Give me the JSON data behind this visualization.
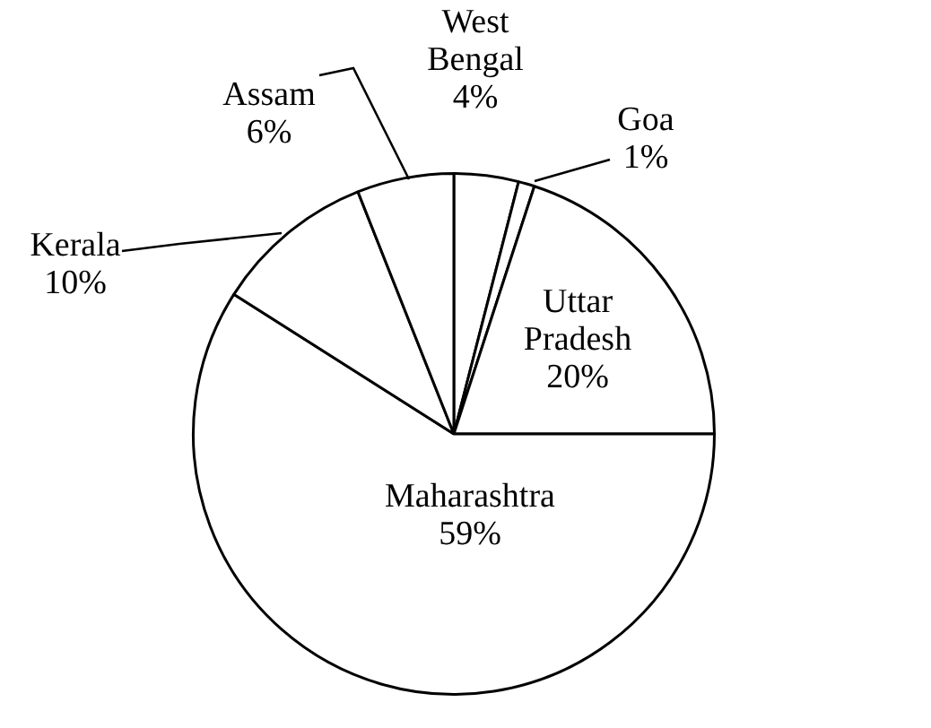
{
  "chart_data": {
    "type": "pie",
    "categories": [
      "West Bengal",
      "Goa",
      "Uttar Pradesh",
      "Maharashtra",
      "Kerala",
      "Assam"
    ],
    "values": [
      4,
      1,
      20,
      59,
      10,
      6
    ],
    "value_labels": [
      "4%",
      "1%",
      "20%",
      "59%",
      "10%",
      "6%"
    ],
    "colors": [
      "#ffffff",
      "#ffffff",
      "#ffffff",
      "#ffffff",
      "#ffffff",
      "#ffffff"
    ],
    "legend": false
  }
}
